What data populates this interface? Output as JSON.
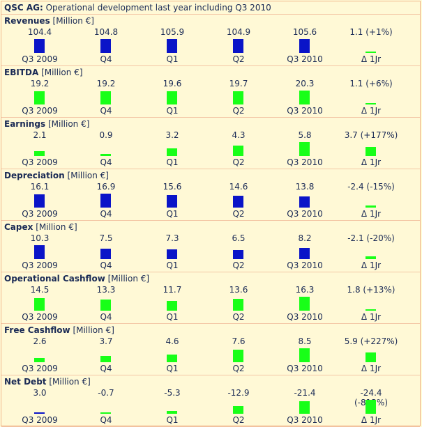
{
  "title": {
    "company": "QSC AG:",
    "text": " Operational development last year including Q3 2010"
  },
  "colors": {
    "blue": "#0a14c8",
    "green": "#18ff18",
    "border": "#f0b489",
    "background": "#fff9d6",
    "text": "#1a2a55"
  },
  "labels": [
    "Q3 2009",
    "Q4",
    "Q1",
    "Q2",
    "Q3 2010",
    "Δ 1Jr"
  ],
  "sections": [
    {
      "name": "Revenues",
      "unit": " [Million €]",
      "values": [
        "104.4",
        "104.8",
        "105.9",
        "104.9",
        "105.6",
        "1.1 (+1%)"
      ],
      "colors": [
        "blue",
        "blue",
        "blue",
        "blue",
        "blue",
        "green"
      ],
      "levels": [
        1,
        1,
        1,
        1,
        1,
        0.1
      ]
    },
    {
      "name": "EBITDA",
      "unit": " [Million €]",
      "values": [
        "19.2",
        "19.2",
        "19.6",
        "19.7",
        "20.3",
        "1.1 (+6%)"
      ],
      "colors": [
        "green",
        "green",
        "green",
        "green",
        "green",
        "green"
      ],
      "levels": [
        0.95,
        0.95,
        0.97,
        0.97,
        1,
        0.1
      ]
    },
    {
      "name": "Earnings",
      "unit": " [Million €]",
      "values": [
        "2.1",
        "0.9",
        "3.2",
        "4.3",
        "5.8",
        "3.7 (+177%)"
      ],
      "colors": [
        "green",
        "green",
        "green",
        "green",
        "green",
        "green"
      ],
      "levels": [
        0.36,
        0.16,
        0.55,
        0.74,
        1,
        0.64
      ]
    },
    {
      "name": "Depreciation",
      "unit": " [Million €]",
      "values": [
        "16.1",
        "16.9",
        "15.6",
        "14.6",
        "13.8",
        "-2.4 (-15%)"
      ],
      "colors": [
        "blue",
        "blue",
        "blue",
        "blue",
        "blue",
        "green"
      ],
      "levels": [
        0.95,
        1,
        0.92,
        0.86,
        0.82,
        0.14
      ]
    },
    {
      "name": "Capex",
      "unit": " [Million €]",
      "values": [
        "10.3",
        "7.5",
        "7.3",
        "6.5",
        "8.2",
        "-2.1 (-20%)"
      ],
      "colors": [
        "blue",
        "blue",
        "blue",
        "blue",
        "blue",
        "green"
      ],
      "levels": [
        1,
        0.73,
        0.71,
        0.63,
        0.8,
        0.2
      ]
    },
    {
      "name": "Operational Cashflow",
      "unit": " [Million €]",
      "values": [
        "14.5",
        "13.3",
        "11.7",
        "13.6",
        "16.3",
        "1.8 (+13%)"
      ],
      "colors": [
        "green",
        "green",
        "green",
        "green",
        "green",
        "green"
      ],
      "levels": [
        0.89,
        0.82,
        0.72,
        0.83,
        1,
        0.11
      ]
    },
    {
      "name": "Free Cashflow",
      "unit": " [Million €]",
      "values": [
        "2.6",
        "3.7",
        "4.6",
        "7.6",
        "8.5",
        "5.9 (+227%)"
      ],
      "colors": [
        "green",
        "green",
        "green",
        "green",
        "green",
        "green"
      ],
      "levels": [
        0.31,
        0.44,
        0.54,
        0.89,
        1,
        0.69
      ]
    },
    {
      "name": "Net Debt",
      "unit": " [Million €]",
      "values": [
        "3.0",
        "-0.7",
        "-5.3",
        "-12.9",
        "-21.4",
        "-24.4 (-813%)"
      ],
      "colors": [
        "blue",
        "green",
        "green",
        "green",
        "green",
        "green"
      ],
      "levels": [
        0.12,
        0.03,
        0.22,
        0.53,
        0.88,
        1
      ]
    }
  ]
}
